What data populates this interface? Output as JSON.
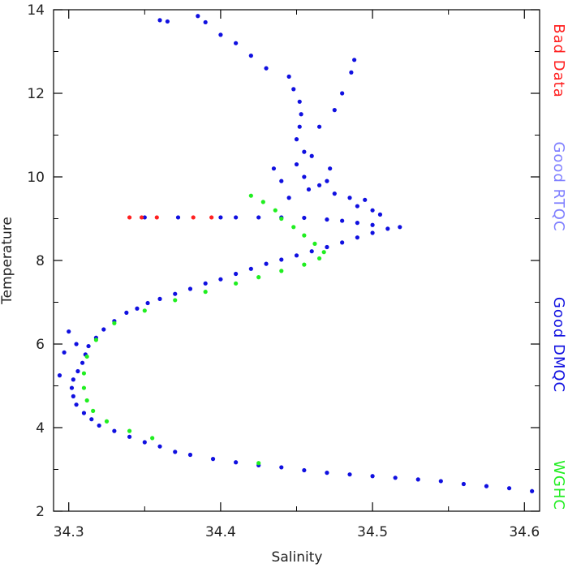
{
  "chart_data": {
    "type": "scatter",
    "xlabel": "Salinity",
    "ylabel": "Temperature",
    "xlim": [
      34.29,
      34.61
    ],
    "ylim": [
      2,
      14
    ],
    "x_ticks": [
      "34.3",
      "34.4",
      "34.5",
      "34.6"
    ],
    "y_ticks": [
      "2",
      "4",
      "6",
      "8",
      "10",
      "12",
      "14"
    ],
    "legend_placement": "right (vertical, outside plot)",
    "series": [
      {
        "name": "Bad Data",
        "color": "#ff2020",
        "points": [
          [
            34.34,
            9.03
          ],
          [
            34.348,
            9.03
          ],
          [
            34.358,
            9.03
          ],
          [
            34.382,
            9.03
          ],
          [
            34.394,
            9.03
          ]
        ]
      },
      {
        "name": "Good RTQC",
        "color": "#7f7fff",
        "points": []
      },
      {
        "name": "Good DMQC",
        "color": "#1010e0",
        "points": [
          [
            34.605,
            2.48
          ],
          [
            34.59,
            2.55
          ],
          [
            34.575,
            2.6
          ],
          [
            34.56,
            2.65
          ],
          [
            34.545,
            2.72
          ],
          [
            34.53,
            2.76
          ],
          [
            34.515,
            2.8
          ],
          [
            34.5,
            2.84
          ],
          [
            34.485,
            2.88
          ],
          [
            34.47,
            2.92
          ],
          [
            34.455,
            2.98
          ],
          [
            34.44,
            3.05
          ],
          [
            34.425,
            3.1
          ],
          [
            34.41,
            3.17
          ],
          [
            34.395,
            3.25
          ],
          [
            34.38,
            3.35
          ],
          [
            34.37,
            3.42
          ],
          [
            34.36,
            3.55
          ],
          [
            34.35,
            3.65
          ],
          [
            34.34,
            3.78
          ],
          [
            34.33,
            3.92
          ],
          [
            34.32,
            4.05
          ],
          [
            34.315,
            4.2
          ],
          [
            34.31,
            4.35
          ],
          [
            34.305,
            4.55
          ],
          [
            34.303,
            4.75
          ],
          [
            34.302,
            4.95
          ],
          [
            34.303,
            5.15
          ],
          [
            34.306,
            5.35
          ],
          [
            34.309,
            5.55
          ],
          [
            34.311,
            5.75
          ],
          [
            34.313,
            5.95
          ],
          [
            34.318,
            6.15
          ],
          [
            34.323,
            6.35
          ],
          [
            34.33,
            6.55
          ],
          [
            34.338,
            6.75
          ],
          [
            34.345,
            6.85
          ],
          [
            34.352,
            6.98
          ],
          [
            34.36,
            7.08
          ],
          [
            34.37,
            7.2
          ],
          [
            34.38,
            7.32
          ],
          [
            34.39,
            7.45
          ],
          [
            34.4,
            7.55
          ],
          [
            34.41,
            7.68
          ],
          [
            34.42,
            7.8
          ],
          [
            34.43,
            7.92
          ],
          [
            34.44,
            8.02
          ],
          [
            34.45,
            8.12
          ],
          [
            34.46,
            8.22
          ],
          [
            34.47,
            8.32
          ],
          [
            34.48,
            8.43
          ],
          [
            34.49,
            8.55
          ],
          [
            34.5,
            8.66
          ],
          [
            34.51,
            8.76
          ],
          [
            34.518,
            8.8
          ],
          [
            34.5,
            8.85
          ],
          [
            34.49,
            8.9
          ],
          [
            34.48,
            8.95
          ],
          [
            34.47,
            8.98
          ],
          [
            34.455,
            9.02
          ],
          [
            34.44,
            9.03
          ],
          [
            34.425,
            9.03
          ],
          [
            34.41,
            9.03
          ],
          [
            34.4,
            9.03
          ],
          [
            34.35,
            9.03
          ],
          [
            34.372,
            9.03
          ],
          [
            34.294,
            5.25
          ],
          [
            34.3,
            6.3
          ],
          [
            34.305,
            6.0
          ],
          [
            34.297,
            5.8
          ],
          [
            34.495,
            9.45
          ],
          [
            34.5,
            9.2
          ],
          [
            34.505,
            9.1
          ],
          [
            34.49,
            9.3
          ],
          [
            34.485,
            9.5
          ],
          [
            34.475,
            9.6
          ],
          [
            34.465,
            9.8
          ],
          [
            34.455,
            10.0
          ],
          [
            34.45,
            10.3
          ],
          [
            34.455,
            10.6
          ],
          [
            34.45,
            10.9
          ],
          [
            34.452,
            11.2
          ],
          [
            34.453,
            11.5
          ],
          [
            34.452,
            11.8
          ],
          [
            34.448,
            12.1
          ],
          [
            34.445,
            12.4
          ],
          [
            34.44,
            9.9
          ],
          [
            34.46,
            10.5
          ],
          [
            34.435,
            10.2
          ],
          [
            34.465,
            11.2
          ],
          [
            34.47,
            9.9
          ],
          [
            34.48,
            12.0
          ],
          [
            34.486,
            12.5
          ],
          [
            34.488,
            12.8
          ],
          [
            34.475,
            11.6
          ],
          [
            34.43,
            12.6
          ],
          [
            34.42,
            12.9
          ],
          [
            34.41,
            13.2
          ],
          [
            34.4,
            13.4
          ],
          [
            34.39,
            13.7
          ],
          [
            34.385,
            13.85
          ],
          [
            34.36,
            13.75
          ],
          [
            34.365,
            13.72
          ],
          [
            34.445,
            9.5
          ],
          [
            34.458,
            9.7
          ],
          [
            34.472,
            10.2
          ]
        ]
      },
      {
        "name": "WGHC",
        "color": "#20ee20",
        "points": [
          [
            34.42,
            9.55
          ],
          [
            34.428,
            9.4
          ],
          [
            34.436,
            9.2
          ],
          [
            34.44,
            9.0
          ],
          [
            34.448,
            8.8
          ],
          [
            34.455,
            8.6
          ],
          [
            34.462,
            8.4
          ],
          [
            34.468,
            8.2
          ],
          [
            34.465,
            8.05
          ],
          [
            34.455,
            7.9
          ],
          [
            34.44,
            7.75
          ],
          [
            34.425,
            7.6
          ],
          [
            34.41,
            7.45
          ],
          [
            34.39,
            7.25
          ],
          [
            34.37,
            7.05
          ],
          [
            34.35,
            6.8
          ],
          [
            34.33,
            6.5
          ],
          [
            34.318,
            6.1
          ],
          [
            34.312,
            5.7
          ],
          [
            34.31,
            5.3
          ],
          [
            34.31,
            4.95
          ],
          [
            34.312,
            4.65
          ],
          [
            34.316,
            4.4
          ],
          [
            34.325,
            4.15
          ],
          [
            34.34,
            3.92
          ],
          [
            34.355,
            3.75
          ],
          [
            34.425,
            3.15
          ]
        ]
      }
    ]
  }
}
